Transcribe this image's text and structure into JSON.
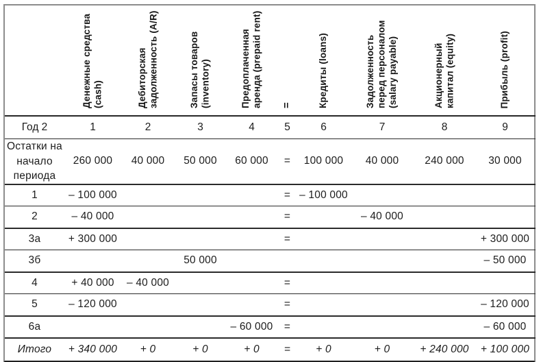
{
  "table": {
    "year_label": "Год 2",
    "columns": [
      {
        "header": "Денежные средства (cash)",
        "number": "1"
      },
      {
        "header": "Дебиторская задолженность (A/R)",
        "number": "2"
      },
      {
        "header": "Запасы товаров (inventory)",
        "number": "3"
      },
      {
        "header": "Предоплаченная аренда (prepaid rent)",
        "number": "4"
      },
      {
        "header": "=",
        "number": "5"
      },
      {
        "header": "Кредиты (loans)",
        "number": "6"
      },
      {
        "header": "Задолженность перед персоналом (salary payable)",
        "number": "7"
      },
      {
        "header": "Акционерный капитал (equity)",
        "number": "8"
      },
      {
        "header": "Прибыль (profit)",
        "number": "9"
      }
    ],
    "rows": [
      {
        "label": "Остатки на начало периода",
        "type": "opening",
        "cells": [
          "260 000",
          "40 000",
          "50 000",
          "60 000",
          "=",
          "100 000",
          "40 000",
          "240 000",
          "30 000"
        ]
      },
      {
        "label": "1",
        "rule": "thin",
        "cells": [
          "– 100 000",
          "",
          "",
          "",
          "=",
          "– 100 000",
          "",
          "",
          ""
        ]
      },
      {
        "label": "2",
        "rule": "thick",
        "cells": [
          "– 40 000",
          "",
          "",
          "",
          "=",
          "",
          "– 40 000",
          "",
          ""
        ]
      },
      {
        "label": "3а",
        "rule": "thin",
        "cells": [
          "+ 300 000",
          "",
          "",
          "",
          "=",
          "",
          "",
          "",
          "+ 300 000"
        ]
      },
      {
        "label": "3б",
        "rule": "thick",
        "cells": [
          "",
          "",
          "50 000",
          "",
          "",
          "",
          "",
          "",
          "– 50 000"
        ]
      },
      {
        "label": "4",
        "rule": "thin",
        "cells": [
          "+ 40 000",
          "– 40 000",
          "",
          "",
          "=",
          "",
          "",
          "",
          ""
        ]
      },
      {
        "label": "5",
        "rule": "thick",
        "cells": [
          "– 120 000",
          "",
          "",
          "",
          "=",
          "",
          "",
          "",
          "– 120 000"
        ]
      },
      {
        "label": "6а",
        "rule": "thick",
        "cells": [
          "",
          "",
          "",
          "– 60 000",
          "=",
          "",
          "",
          "",
          "– 60 000"
        ]
      },
      {
        "label": "Итого",
        "type": "totals",
        "cells": [
          "+ 340 000",
          "+ 0",
          "+ 0",
          "+ 0",
          "=",
          "+ 0",
          "+ 0",
          "+ 240 000",
          "+ 100 000"
        ]
      }
    ]
  }
}
